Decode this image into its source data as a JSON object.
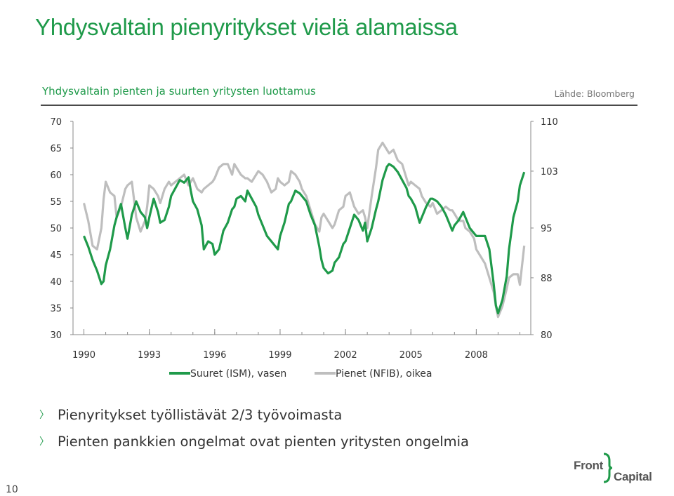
{
  "slide": {
    "title": "Yhdysvaltain pienyritykset vielä alamaissa",
    "page_number": "10",
    "bullets": [
      "Pienyritykset työllistävät 2/3 työvoimasta",
      "Pienten pankkien ongelmat ovat pienten yritysten ongelmia"
    ],
    "logo": {
      "word1": "Front",
      "word2": "Capital"
    }
  },
  "chart_data": {
    "type": "line",
    "title": "Yhdysvaltain pienten ja suurten yritysten luottamus",
    "source": "Lähde: Bloomberg",
    "x_ticks": [
      "1990",
      "1993",
      "1996",
      "1999",
      "2002",
      "2005",
      "2008"
    ],
    "xlim": [
      1989.5,
      2010.5
    ],
    "y_left": {
      "ticks": [
        "70",
        "65",
        "60",
        "55",
        "50",
        "45",
        "40",
        "35",
        "30"
      ],
      "ylim": [
        30,
        70
      ]
    },
    "y_right": {
      "ticks": [
        "110",
        "103",
        "95",
        "88",
        "80"
      ],
      "ylim": [
        80,
        110
      ]
    },
    "legend_position": "bottom",
    "series": [
      {
        "name": "Suuret (ISM), vasen",
        "axis": "left",
        "color": "#1f9a4a",
        "x": [
          1990.0,
          1990.2,
          1990.4,
          1990.6,
          1990.8,
          1990.9,
          1991.0,
          1991.2,
          1991.4,
          1991.5,
          1991.7,
          1991.9,
          1992.0,
          1992.2,
          1992.4,
          1992.6,
          1992.8,
          1992.9,
          1993.0,
          1993.2,
          1993.4,
          1993.5,
          1993.7,
          1993.9,
          1994.0,
          1994.2,
          1994.4,
          1994.6,
          1994.8,
          1994.9,
          1995.0,
          1995.2,
          1995.4,
          1995.5,
          1995.7,
          1995.9,
          1996.0,
          1996.2,
          1996.4,
          1996.6,
          1996.8,
          1996.9,
          1997.0,
          1997.2,
          1997.4,
          1997.5,
          1997.7,
          1997.9,
          1998.0,
          1998.2,
          1998.4,
          1998.6,
          1998.8,
          1998.9,
          1999.0,
          1999.2,
          1999.4,
          1999.5,
          1999.7,
          1999.9,
          2000.0,
          2000.2,
          2000.4,
          2000.6,
          2000.8,
          2000.9,
          2001.0,
          2001.2,
          2001.4,
          2001.5,
          2001.7,
          2001.9,
          2002.0,
          2002.2,
          2002.4,
          2002.6,
          2002.8,
          2002.9,
          2003.0,
          2003.2,
          2003.4,
          2003.5,
          2003.7,
          2003.9,
          2004.0,
          2004.2,
          2004.4,
          2004.6,
          2004.8,
          2004.9,
          2005.0,
          2005.2,
          2005.4,
          2005.5,
          2005.7,
          2005.9,
          2006.0,
          2006.2,
          2006.4,
          2006.6,
          2006.8,
          2006.9,
          2007.0,
          2007.2,
          2007.4,
          2007.5,
          2007.7,
          2007.9,
          2008.0,
          2008.2,
          2008.4,
          2008.6,
          2008.8,
          2008.9,
          2009.0,
          2009.2,
          2009.4,
          2009.5,
          2009.7,
          2009.9,
          2010.0,
          2010.2
        ],
        "values": [
          48.5,
          46.5,
          44.0,
          42.0,
          39.5,
          40.0,
          43.0,
          46.0,
          50.5,
          52.0,
          54.5,
          50.0,
          48.0,
          52.5,
          55.0,
          53.0,
          52.0,
          50.0,
          52.0,
          55.5,
          53.0,
          51.0,
          51.5,
          54.0,
          56.0,
          57.5,
          59.0,
          58.5,
          59.5,
          57.0,
          55.0,
          53.5,
          50.5,
          46.0,
          47.5,
          47.0,
          45.0,
          46.0,
          49.5,
          51.0,
          53.5,
          54.0,
          55.5,
          56.0,
          55.0,
          57.0,
          55.5,
          54.0,
          52.5,
          50.5,
          48.5,
          47.5,
          46.5,
          46.0,
          48.5,
          51.0,
          54.5,
          55.0,
          57.0,
          56.5,
          56.0,
          55.0,
          52.5,
          50.5,
          46.5,
          44.0,
          42.5,
          41.5,
          42.0,
          43.5,
          44.5,
          47.0,
          47.5,
          50.0,
          52.5,
          51.5,
          49.5,
          51.0,
          47.5,
          50.0,
          53.5,
          55.0,
          59.0,
          61.5,
          62.0,
          61.5,
          60.5,
          59.0,
          57.5,
          56.0,
          55.5,
          54.0,
          51.0,
          52.0,
          54.0,
          55.5,
          55.5,
          55.0,
          54.0,
          52.5,
          50.5,
          49.5,
          50.5,
          51.5,
          53.0,
          52.0,
          50.0,
          49.0,
          48.5,
          48.5,
          48.5,
          46.0,
          39.5,
          35.5,
          34.0,
          36.5,
          41.0,
          46.0,
          52.0,
          55.0,
          58.0,
          60.5
        ]
      },
      {
        "name": "Pienet (NFIB), oikea",
        "axis": "right",
        "color": "#bebebe",
        "x": [
          1990.0,
          1990.2,
          1990.4,
          1990.6,
          1990.8,
          1990.9,
          1991.0,
          1991.2,
          1991.4,
          1991.5,
          1991.7,
          1991.9,
          1992.0,
          1992.2,
          1992.4,
          1992.6,
          1992.8,
          1992.9,
          1993.0,
          1993.2,
          1993.4,
          1993.5,
          1993.7,
          1993.9,
          1994.0,
          1994.2,
          1994.4,
          1994.6,
          1994.8,
          1994.9,
          1995.0,
          1995.2,
          1995.4,
          1995.5,
          1995.7,
          1995.9,
          1996.0,
          1996.2,
          1996.4,
          1996.6,
          1996.8,
          1996.9,
          1997.0,
          1997.2,
          1997.4,
          1997.5,
          1997.7,
          1997.9,
          1998.0,
          1998.2,
          1998.4,
          1998.6,
          1998.8,
          1998.9,
          1999.0,
          1999.2,
          1999.4,
          1999.5,
          1999.7,
          1999.9,
          2000.0,
          2000.2,
          2000.4,
          2000.6,
          2000.8,
          2000.9,
          2001.0,
          2001.2,
          2001.4,
          2001.5,
          2001.7,
          2001.9,
          2002.0,
          2002.2,
          2002.4,
          2002.6,
          2002.8,
          2002.9,
          2003.0,
          2003.2,
          2003.4,
          2003.5,
          2003.7,
          2003.9,
          2004.0,
          2004.2,
          2004.4,
          2004.6,
          2004.8,
          2004.9,
          2005.0,
          2005.2,
          2005.4,
          2005.5,
          2005.7,
          2005.9,
          2006.0,
          2006.2,
          2006.4,
          2006.6,
          2006.8,
          2006.9,
          2007.0,
          2007.2,
          2007.4,
          2007.5,
          2007.7,
          2007.9,
          2008.0,
          2008.2,
          2008.4,
          2008.6,
          2008.8,
          2008.9,
          2009.0,
          2009.2,
          2009.4,
          2009.5,
          2009.7,
          2009.9,
          2010.0,
          2010.2
        ],
        "values": [
          98.5,
          96.0,
          92.5,
          92.0,
          95.0,
          99.0,
          101.5,
          100.0,
          99.5,
          96.5,
          98.0,
          100.5,
          101.0,
          101.5,
          96.5,
          94.5,
          96.0,
          98.0,
          101.0,
          100.5,
          99.5,
          98.5,
          100.5,
          101.5,
          101.0,
          101.5,
          102.0,
          102.5,
          101.0,
          101.5,
          102.0,
          100.5,
          100.0,
          100.5,
          101.0,
          101.5,
          102.0,
          103.5,
          104.0,
          104.0,
          102.5,
          104.0,
          103.5,
          102.5,
          102.0,
          102.0,
          101.5,
          102.5,
          103.0,
          102.5,
          101.5,
          100.0,
          100.5,
          102.0,
          101.5,
          101.0,
          101.5,
          103.0,
          102.5,
          101.5,
          100.5,
          99.5,
          97.5,
          95.5,
          94.5,
          96.5,
          97.0,
          96.0,
          95.0,
          95.5,
          97.5,
          98.0,
          99.5,
          100.0,
          98.0,
          97.0,
          97.5,
          96.5,
          95.0,
          99.5,
          103.5,
          106.0,
          107.0,
          106.0,
          105.5,
          106.0,
          104.5,
          104.0,
          102.0,
          101.0,
          101.5,
          101.0,
          100.5,
          99.5,
          98.5,
          98.0,
          98.5,
          97.0,
          97.5,
          98.0,
          97.5,
          97.5,
          97.0,
          96.0,
          96.0,
          95.0,
          94.5,
          93.5,
          92.0,
          91.0,
          90.0,
          88.0,
          86.0,
          84.0,
          82.5,
          84.0,
          86.5,
          88.0,
          88.5,
          88.5,
          87.0,
          92.5
        ]
      }
    ]
  }
}
